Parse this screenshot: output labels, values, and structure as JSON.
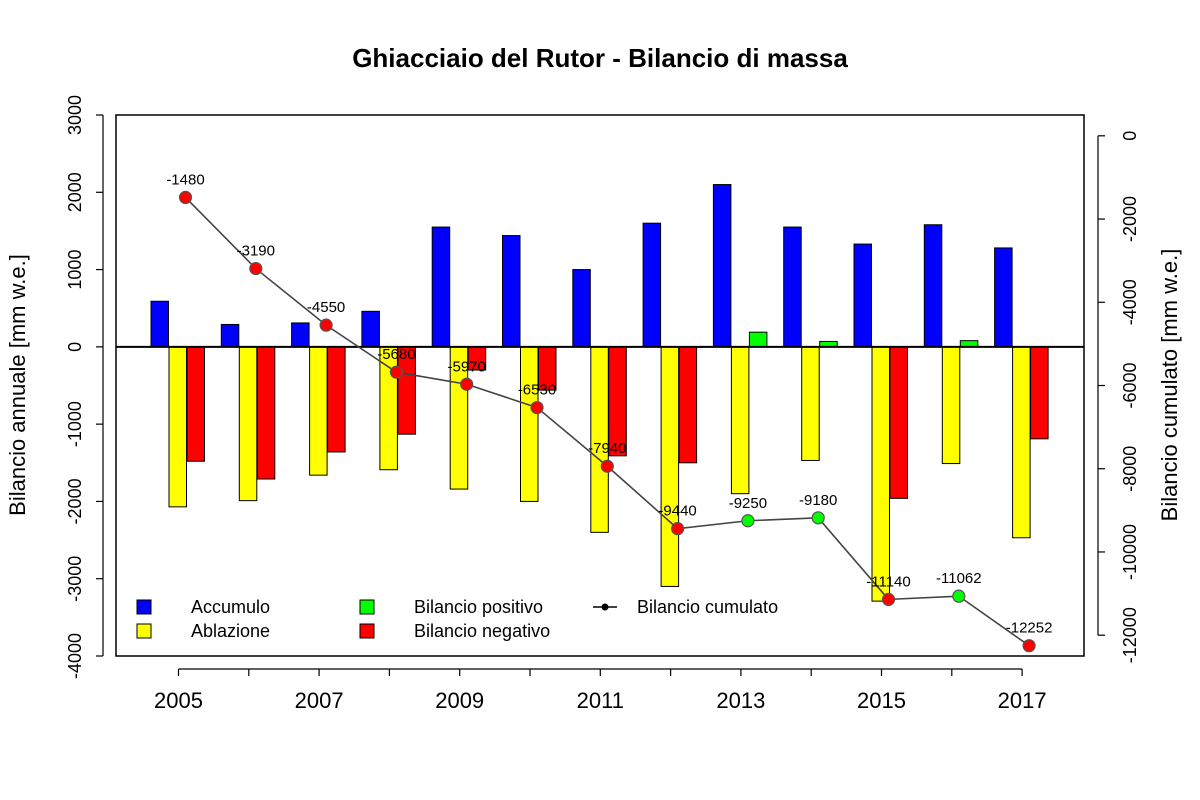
{
  "chart_data": {
    "type": "bar",
    "title": "Ghiacciaio del Rutor - Bilancio di massa",
    "ylabel": "Bilancio annuale [mm w.e.]",
    "y2label": "Bilancio cumulato [mm w.e.]",
    "ylim": [
      -4000,
      3000
    ],
    "y2lim": [
      -12500,
      500
    ],
    "yticks": [
      -4000,
      -3000,
      -2000,
      -1000,
      0,
      1000,
      2000,
      3000
    ],
    "y2ticks": [
      -12000,
      -10000,
      -8000,
      -6000,
      -4000,
      -2000,
      0
    ],
    "ytick_labels": [
      "-4000",
      "-3000",
      "-2000",
      "-1000",
      "0",
      "1000",
      "2000",
      "3000"
    ],
    "y2tick_labels": [
      "-12000",
      "-10000",
      "-8000",
      "-6000",
      "-4000",
      "-2000",
      "0"
    ],
    "categories": [
      "2005",
      "2006",
      "2007",
      "2008",
      "2009",
      "2010",
      "2011",
      "2012",
      "2013",
      "2014",
      "2015",
      "2016",
      "2017"
    ],
    "xtick_labels": [
      "2005",
      "",
      "2007",
      "",
      "2009",
      "",
      "2011",
      "",
      "2013",
      "",
      "2015",
      "",
      "2017"
    ],
    "series": [
      {
        "name": "Accumulo",
        "color": "#0000ff",
        "values": [
          590,
          290,
          310,
          460,
          1550,
          1440,
          1000,
          1600,
          2100,
          1550,
          1330,
          1580,
          1280
        ]
      },
      {
        "name": "Ablazione",
        "color": "#ffff00",
        "values": [
          -2070,
          -1990,
          -1660,
          -1590,
          -1840,
          -2000,
          -2400,
          -3100,
          -1900,
          -1470,
          -3290,
          -1510,
          -2470
        ]
      },
      {
        "name": "Bilancio positivo",
        "color": "#00ff00",
        "values": [
          0,
          0,
          0,
          0,
          0,
          0,
          0,
          0,
          190,
          70,
          0,
          80,
          0
        ]
      },
      {
        "name": "Bilancio negativo",
        "color": "#ff0000",
        "values": [
          -1480,
          -1710,
          -1360,
          -1130,
          -300,
          -560,
          -1410,
          -1500,
          0,
          0,
          -1960,
          0,
          -1190
        ]
      }
    ],
    "cumulative": {
      "name": "Bilancio cumulato",
      "values": [
        -1480,
        -3190,
        -4550,
        -5680,
        -5970,
        -6530,
        -7940,
        -9440,
        -9250,
        -9180,
        -11140,
        -11062,
        -12252
      ],
      "labels": [
        "-1480",
        "-3190",
        "-4550",
        "-5680",
        "-5970",
        "-6530",
        "-7940",
        "-9440",
        "-9250",
        "-9180",
        "-11140",
        "-11062",
        "-12252"
      ],
      "point_colors": [
        "#ff0000",
        "#ff0000",
        "#ff0000",
        "#ff0000",
        "#ff0000",
        "#ff0000",
        "#ff0000",
        "#ff0000",
        "#00ff00",
        "#00ff00",
        "#ff0000",
        "#00ff00",
        "#ff0000"
      ],
      "line_color": "#444444"
    },
    "legend": {
      "position": "bottom-left",
      "items": [
        {
          "label": "Accumulo",
          "kind": "box",
          "color": "#0000ff"
        },
        {
          "label": "Ablazione",
          "kind": "box",
          "color": "#ffff00"
        },
        {
          "label": "Bilancio positivo",
          "kind": "box",
          "color": "#00ff00"
        },
        {
          "label": "Bilancio negativo",
          "kind": "box",
          "color": "#ff0000"
        },
        {
          "label": "Bilancio cumulato",
          "kind": "line",
          "color": "#000000"
        }
      ]
    }
  }
}
